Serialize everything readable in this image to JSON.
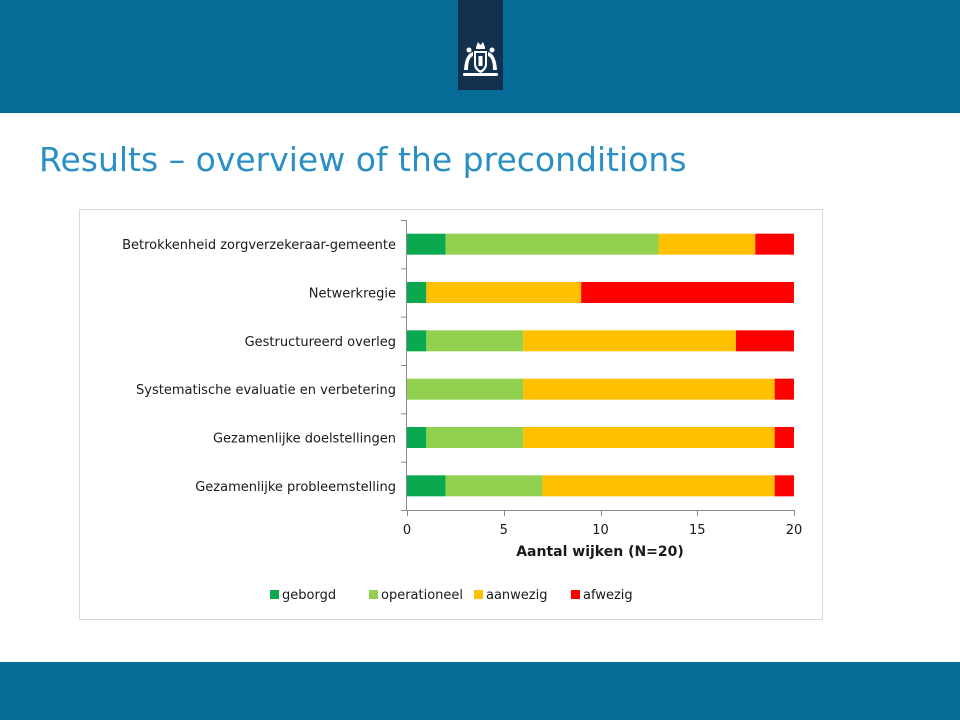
{
  "colors": {
    "header_bar": "#076b97",
    "logo_block": "#14304f",
    "title_text": "#2a8fc5"
  },
  "header": {
    "logo_icon": "coat-of-arms-icon"
  },
  "slide": {
    "title": "Results – overview of the preconditions"
  },
  "chart_data": {
    "type": "bar",
    "orientation": "horizontal",
    "stacked": true,
    "title": "",
    "xlabel": "Aantal wijken (N=20)",
    "ylabel": "",
    "xlim": [
      0,
      20
    ],
    "x_ticks": [
      "0",
      "5",
      "10",
      "15",
      "20"
    ],
    "x_tick_values": [
      0,
      5,
      10,
      15,
      20
    ],
    "grid": false,
    "legend_position": "bottom",
    "categories": [
      "Betrokkenheid zorgverzekeraar-gemeente",
      "Netwerkregie",
      "Gestructureerd overleg",
      "Systematische evaluatie en verbetering",
      "Gezamenlijke doelstellingen",
      "Gezamenlijke probleemstelling"
    ],
    "series": [
      {
        "name": "geborgd",
        "color": "#0aa84f",
        "values": [
          2,
          1,
          1,
          0,
          1,
          2
        ]
      },
      {
        "name": "operationeel",
        "color": "#92d050",
        "values": [
          11,
          0,
          5,
          6,
          5,
          5
        ]
      },
      {
        "name": "aanwezig",
        "color": "#ffc000",
        "values": [
          5,
          8,
          11,
          13,
          13,
          12
        ]
      },
      {
        "name": "afwezig",
        "color": "#ff0000",
        "values": [
          2,
          11,
          3,
          1,
          1,
          1
        ]
      }
    ]
  }
}
